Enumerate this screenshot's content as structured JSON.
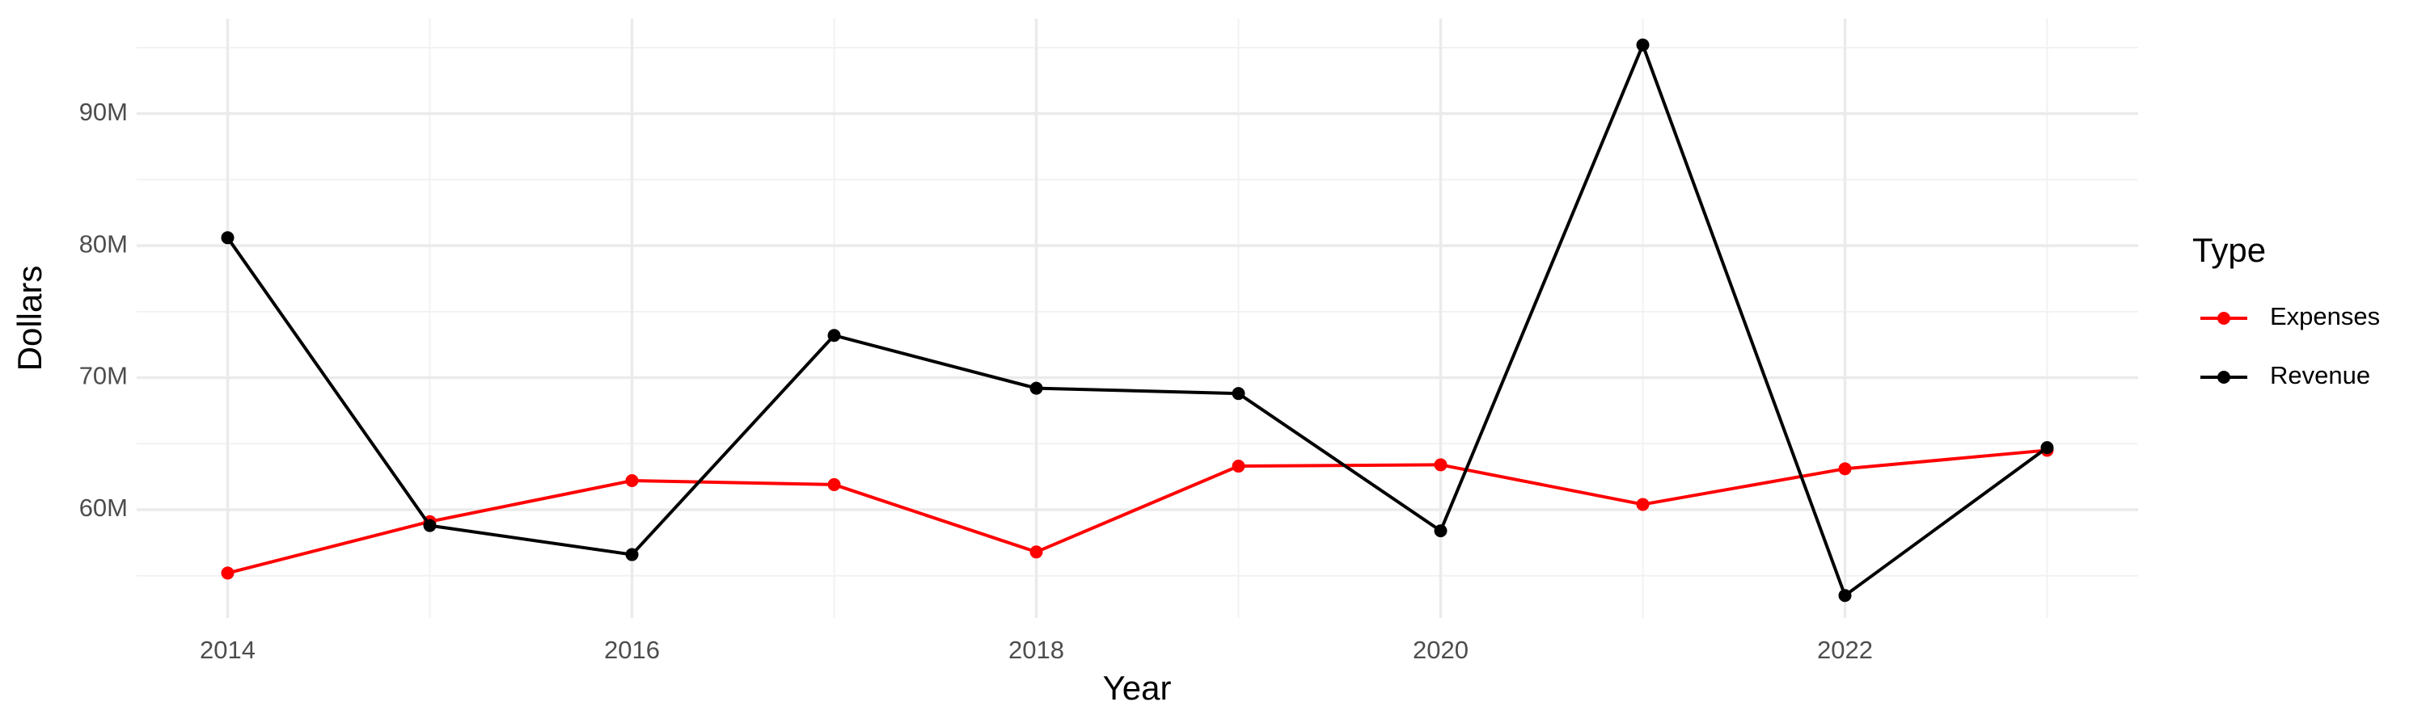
{
  "chart_data": {
    "type": "line",
    "x_label": "Year",
    "y_label": "Dollars",
    "legend_title": "Type",
    "legend": "right",
    "grid": true,
    "x": [
      2014,
      2015,
      2016,
      2017,
      2018,
      2019,
      2020,
      2021,
      2022,
      2023
    ],
    "series": [
      {
        "name": "Expenses",
        "color": "#ff0000",
        "values": [
          55200000,
          59100000,
          62200000,
          61900000,
          56800000,
          63300000,
          63400000,
          60400000,
          63100000,
          64500000
        ]
      },
      {
        "name": "Revenue",
        "color": "#000000",
        "values": [
          80600000,
          58800000,
          56600000,
          73200000,
          69200000,
          68800000,
          58400000,
          95200000,
          53500000,
          64700000
        ]
      }
    ],
    "xlim": [
      2013.55,
      2023.45
    ],
    "xticks": [
      2014,
      2016,
      2018,
      2020,
      2022
    ],
    "ylim": [
      51800000,
      97200000
    ],
    "yticks": [
      {
        "value": 60000000,
        "label": "60M"
      },
      {
        "value": 70000000,
        "label": "70M"
      },
      {
        "value": 80000000,
        "label": "80M"
      },
      {
        "value": 90000000,
        "label": "90M"
      }
    ]
  }
}
